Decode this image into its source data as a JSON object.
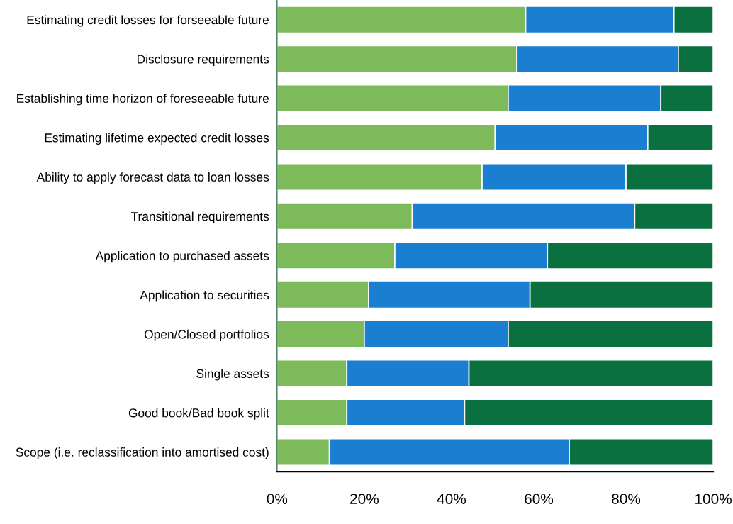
{
  "chart_data": {
    "type": "bar",
    "orientation": "horizontal",
    "stacked": true,
    "categories": [
      "Estimating credit losses for forseeable future",
      "Disclosure requirements",
      "Establishing time horizon of foreseeable future",
      "Estimating lifetime expected credit losses",
      "Ability to apply forecast data to loan losses",
      "Transitional requirements",
      "Application to purchased assets",
      "Application to securities",
      "Open/Closed portfolios",
      "Single assets",
      "Good book/Bad book split",
      "Scope (i.e. reclassification into amortised cost)"
    ],
    "series": [
      {
        "color": "#7dba5a",
        "values": [
          57,
          55,
          53,
          50,
          47,
          31,
          27,
          21,
          20,
          16,
          16,
          12
        ]
      },
      {
        "color": "#1a7fd0",
        "values": [
          34,
          37,
          35,
          35,
          33,
          51,
          35,
          37,
          33,
          28,
          27,
          55
        ]
      },
      {
        "color": "#0b7040",
        "values": [
          9,
          8,
          12,
          15,
          20,
          18,
          38,
          42,
          47,
          56,
          57,
          33
        ]
      }
    ],
    "xlim": [
      0,
      100
    ],
    "xticks": [
      {
        "value": 0,
        "label": "0%"
      },
      {
        "value": 20,
        "label": "20%"
      },
      {
        "value": 40,
        "label": "40%"
      },
      {
        "value": 60,
        "label": "60%"
      },
      {
        "value": 80,
        "label": "80%"
      },
      {
        "value": 100,
        "label": "100%"
      }
    ],
    "grid": false,
    "legend": false
  }
}
